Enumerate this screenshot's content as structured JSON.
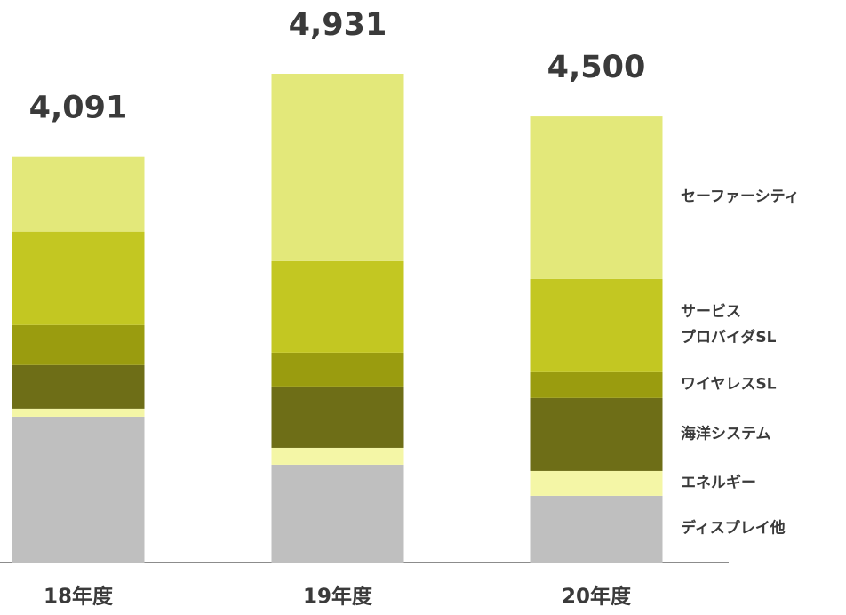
{
  "chart_data": {
    "type": "stacked-bar",
    "categories": [
      "18年度",
      "19年度",
      "20年度"
    ],
    "series": [
      {
        "name": "ディスプレイ他",
        "color": "#bfbfbf",
        "values": [
          1471,
          987,
          673
        ]
      },
      {
        "name": "エネルギー",
        "color": "#f4f6a6",
        "values": [
          81,
          170,
          251
        ]
      },
      {
        "name": "海洋システム",
        "color": "#6e6e17",
        "values": [
          440,
          619,
          736
        ]
      },
      {
        "name": "ワイヤレスSL",
        "color": "#9a9c0f",
        "values": [
          404,
          341,
          260
        ]
      },
      {
        "name": "サービス\nプロバイダSL",
        "color": "#c3c722",
        "values": [
          942,
          924,
          942
        ]
      },
      {
        "name": "セーファーシティ",
        "color": "#e3e87a",
        "values": [
          753,
          1890,
          1638
        ]
      }
    ],
    "totals": {
      "values": [
        4091,
        4931,
        4500
      ],
      "value_labels": [
        "4,091",
        "4,931",
        "4,500"
      ]
    }
  }
}
